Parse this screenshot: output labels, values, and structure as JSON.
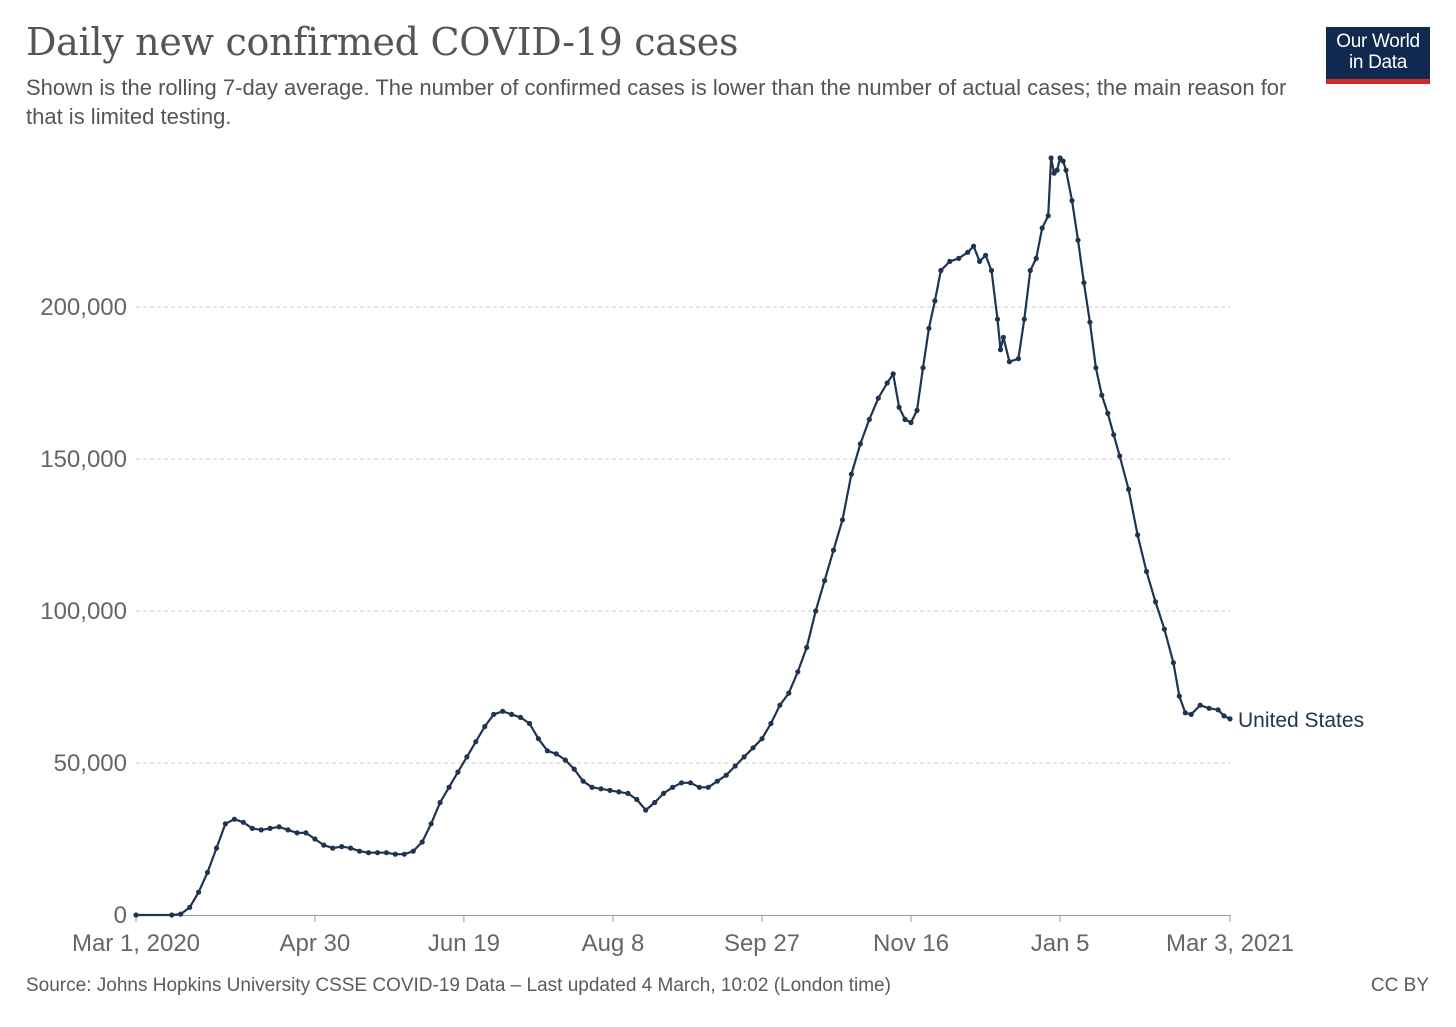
{
  "header": {
    "title": "Daily new confirmed COVID-19 cases",
    "subtitle": "Shown is the rolling 7-day average. The number of confirmed cases is lower than the number of actual cases; the main reason for that is limited testing."
  },
  "logo": {
    "line1": "Our World",
    "line2": "in Data",
    "bg_color": "#0f2a4e",
    "accent_color": "#d4292b"
  },
  "footer": {
    "source": "Source: Johns Hopkins University CSSE COVID-19 Data – Last updated 4 March, 10:02 (London time)",
    "license": "CC BY"
  },
  "chart_data": {
    "type": "line",
    "title": "Daily new confirmed COVID-19 cases",
    "xlabel": "",
    "ylabel": "",
    "x_unit": "days since Mar 1, 2020",
    "xlim": [
      0,
      367
    ],
    "ylim": [
      0,
      250000
    ],
    "yticks": [
      0,
      50000,
      100000,
      150000,
      200000
    ],
    "ytick_labels": [
      "0",
      "50,000",
      "100,000",
      "150,000",
      "200,000"
    ],
    "xticks": [
      0,
      60,
      110,
      160,
      210,
      260,
      310,
      367
    ],
    "xtick_labels": [
      "Mar 1, 2020",
      "Apr 30",
      "Jun 19",
      "Aug 8",
      "Sep 27",
      "Nov 16",
      "Jan 5",
      "Mar 3, 2021"
    ],
    "grid": "horizontal dashed",
    "line_color": "#1f3450",
    "series": [
      {
        "name": "United States",
        "label": "United States",
        "points": [
          [
            0,
            0
          ],
          [
            12,
            0
          ],
          [
            15,
            300
          ],
          [
            18,
            2500
          ],
          [
            21,
            7500
          ],
          [
            24,
            14000
          ],
          [
            27,
            22000
          ],
          [
            30,
            30000
          ],
          [
            33,
            31500
          ],
          [
            36,
            30500
          ],
          [
            39,
            28500
          ],
          [
            42,
            28000
          ],
          [
            45,
            28500
          ],
          [
            48,
            29000
          ],
          [
            51,
            28000
          ],
          [
            54,
            27000
          ],
          [
            57,
            27000
          ],
          [
            60,
            25000
          ],
          [
            63,
            23000
          ],
          [
            66,
            22000
          ],
          [
            69,
            22500
          ],
          [
            72,
            22000
          ],
          [
            75,
            21000
          ],
          [
            78,
            20500
          ],
          [
            81,
            20500
          ],
          [
            84,
            20500
          ],
          [
            87,
            20000
          ],
          [
            90,
            20000
          ],
          [
            93,
            21000
          ],
          [
            96,
            24000
          ],
          [
            99,
            30000
          ],
          [
            102,
            37000
          ],
          [
            105,
            42000
          ],
          [
            108,
            47000
          ],
          [
            111,
            52000
          ],
          [
            114,
            57000
          ],
          [
            117,
            62000
          ],
          [
            120,
            66000
          ],
          [
            123,
            67000
          ],
          [
            126,
            66000
          ],
          [
            129,
            65000
          ],
          [
            132,
            63000
          ],
          [
            135,
            58000
          ],
          [
            138,
            54000
          ],
          [
            141,
            53000
          ],
          [
            144,
            51000
          ],
          [
            147,
            48000
          ],
          [
            150,
            44000
          ],
          [
            153,
            42000
          ],
          [
            156,
            41500
          ],
          [
            159,
            41000
          ],
          [
            162,
            40500
          ],
          [
            165,
            40000
          ],
          [
            168,
            38000
          ],
          [
            171,
            34500
          ],
          [
            174,
            37000
          ],
          [
            177,
            40000
          ],
          [
            180,
            42000
          ],
          [
            183,
            43500
          ],
          [
            186,
            43500
          ],
          [
            189,
            42000
          ],
          [
            192,
            42000
          ],
          [
            195,
            44000
          ],
          [
            198,
            46000
          ],
          [
            201,
            49000
          ],
          [
            204,
            52000
          ],
          [
            207,
            55000
          ],
          [
            210,
            58000
          ],
          [
            213,
            63000
          ],
          [
            216,
            69000
          ],
          [
            219,
            73000
          ],
          [
            222,
            80000
          ],
          [
            225,
            88000
          ],
          [
            228,
            100000
          ],
          [
            231,
            110000
          ],
          [
            234,
            120000
          ],
          [
            237,
            130000
          ],
          [
            240,
            145000
          ],
          [
            243,
            155000
          ],
          [
            246,
            163000
          ],
          [
            249,
            170000
          ],
          [
            252,
            175000
          ],
          [
            254,
            178000
          ],
          [
            256,
            167000
          ],
          [
            258,
            163000
          ],
          [
            260,
            162000
          ],
          [
            262,
            166000
          ],
          [
            264,
            180000
          ],
          [
            266,
            193000
          ],
          [
            268,
            202000
          ],
          [
            270,
            212000
          ],
          [
            273,
            215000
          ],
          [
            276,
            216000
          ],
          [
            279,
            218000
          ],
          [
            281,
            220000
          ],
          [
            283,
            215000
          ],
          [
            285,
            217000
          ],
          [
            287,
            212000
          ],
          [
            289,
            196000
          ],
          [
            290,
            186000
          ],
          [
            291,
            190000
          ],
          [
            293,
            182000
          ],
          [
            296,
            183000
          ],
          [
            298,
            196000
          ],
          [
            300,
            212000
          ],
          [
            302,
            216000
          ],
          [
            304,
            226000
          ],
          [
            306,
            230000
          ],
          [
            307,
            249000
          ],
          [
            308,
            244000
          ],
          [
            309,
            245000
          ],
          [
            310,
            249000
          ],
          [
            311,
            248000
          ],
          [
            312,
            245000
          ],
          [
            314,
            235000
          ],
          [
            316,
            222000
          ],
          [
            318,
            208000
          ],
          [
            320,
            195000
          ],
          [
            322,
            180000
          ],
          [
            324,
            171000
          ],
          [
            326,
            165000
          ],
          [
            328,
            158000
          ],
          [
            330,
            151000
          ],
          [
            333,
            140000
          ],
          [
            336,
            125000
          ],
          [
            339,
            113000
          ],
          [
            342,
            103000
          ],
          [
            345,
            94000
          ],
          [
            348,
            83000
          ],
          [
            350,
            72000
          ],
          [
            352,
            66500
          ],
          [
            354,
            66000
          ],
          [
            357,
            69000
          ],
          [
            360,
            68000
          ],
          [
            363,
            67500
          ],
          [
            365,
            65500
          ],
          [
            367,
            64500
          ]
        ]
      }
    ]
  }
}
